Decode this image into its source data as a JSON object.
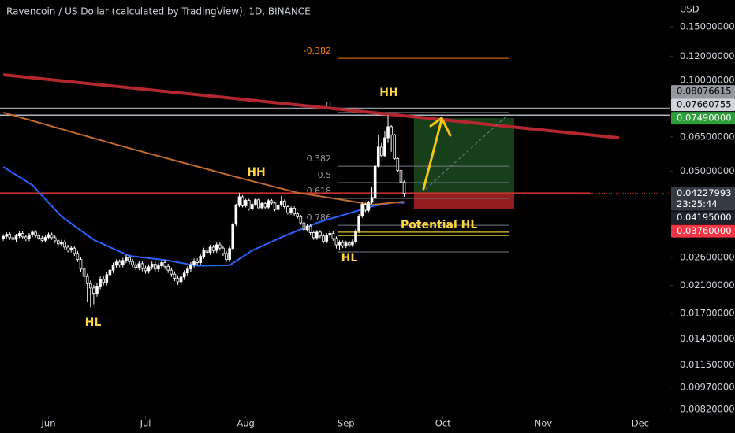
{
  "chart_data": {
    "type": "candlestick",
    "title": "Ravencoin / US Dollar (calculated by TradingView), 1D, BINANCE",
    "currency": "USD",
    "log_scale": true,
    "up_color": "#ffffff",
    "down_color": "#000000",
    "wick_color": "#ffffff",
    "xlim": [
      -1,
      206.3
    ],
    "xticks": [
      {
        "value": 14,
        "label": "Jun"
      },
      {
        "value": 44,
        "label": "Jul"
      },
      {
        "value": 75,
        "label": "Aug"
      },
      {
        "value": 106,
        "label": "Sep"
      },
      {
        "value": 136,
        "label": "Oct"
      },
      {
        "value": 167,
        "label": "Nov"
      },
      {
        "value": 197,
        "label": "Dec"
      }
    ],
    "ylim": [
      0.008,
      0.1838
    ],
    "yticks": [
      {
        "value": 0.15,
        "label": "0.15000000"
      },
      {
        "value": 0.12,
        "label": "0.12000000"
      },
      {
        "value": 0.1,
        "label": "0.10000000"
      },
      {
        "value": 0.065,
        "label": "0.06500000"
      },
      {
        "value": 0.05,
        "label": "0.05000000"
      },
      {
        "value": 0.026,
        "label": "0.02600000"
      },
      {
        "value": 0.021,
        "label": "0.02100000"
      },
      {
        "value": 0.017,
        "label": "0.01700000"
      },
      {
        "value": 0.014,
        "label": "0.01400000"
      },
      {
        "value": 0.0115,
        "label": "0.01150000"
      },
      {
        "value": 0.0097,
        "label": "0.00970000"
      },
      {
        "value": 0.0082,
        "label": "0.00820000"
      }
    ],
    "open": [
      0.03,
      0.0305,
      0.031,
      0.0302,
      0.0298,
      0.0306,
      0.0312,
      0.0304,
      0.0299,
      0.0308,
      0.0315,
      0.0307,
      0.0301,
      0.0296,
      0.0303,
      0.0309,
      0.0302,
      0.0295,
      0.0288,
      0.0292,
      0.0281,
      0.0275,
      0.0279,
      0.0268,
      0.0256,
      0.0238,
      0.0225,
      0.0213,
      0.0206,
      0.0198,
      0.0209,
      0.022,
      0.0215,
      0.0228,
      0.0236,
      0.0245,
      0.0251,
      0.0246,
      0.0254,
      0.026,
      0.0252,
      0.0246,
      0.0241,
      0.0248,
      0.0239,
      0.0235,
      0.0242,
      0.0247,
      0.0238,
      0.0244,
      0.025,
      0.0243,
      0.0236,
      0.0229,
      0.0222,
      0.0216,
      0.0224,
      0.0231,
      0.0238,
      0.0246,
      0.0253,
      0.025,
      0.0262,
      0.0275,
      0.027,
      0.0281,
      0.0274,
      0.0286,
      0.0279,
      0.0268,
      0.0256,
      0.0278,
      0.0335,
      0.0386,
      0.0412,
      0.0385,
      0.0401,
      0.0376,
      0.0389,
      0.0403,
      0.0379,
      0.0392,
      0.0381,
      0.04,
      0.0393,
      0.0374,
      0.0387,
      0.0399,
      0.0382,
      0.0365,
      0.0378,
      0.0362,
      0.0354,
      0.0338,
      0.0321,
      0.033,
      0.0314,
      0.0302,
      0.0315,
      0.0306,
      0.0294,
      0.0308,
      0.0312,
      0.03,
      0.0286,
      0.0291,
      0.0284,
      0.029,
      0.0286,
      0.0293,
      0.0318,
      0.0356,
      0.0389,
      0.0372,
      0.0395,
      0.041,
      0.052,
      0.0601,
      0.0563,
      0.0645,
      0.0702,
      0.066,
      0.0551,
      0.0503,
      0.0461
    ],
    "close": [
      0.0305,
      0.031,
      0.0302,
      0.0298,
      0.0306,
      0.0312,
      0.0304,
      0.0299,
      0.0308,
      0.0315,
      0.0307,
      0.0301,
      0.0296,
      0.0303,
      0.0309,
      0.0302,
      0.0295,
      0.0288,
      0.0292,
      0.0281,
      0.0275,
      0.0279,
      0.0268,
      0.0256,
      0.0238,
      0.0225,
      0.0213,
      0.0206,
      0.0198,
      0.0209,
      0.022,
      0.0215,
      0.0228,
      0.0236,
      0.0245,
      0.0251,
      0.0246,
      0.0254,
      0.026,
      0.0252,
      0.0246,
      0.0241,
      0.0248,
      0.0239,
      0.0235,
      0.0242,
      0.0247,
      0.0238,
      0.0244,
      0.025,
      0.0243,
      0.0236,
      0.0229,
      0.0222,
      0.0216,
      0.0224,
      0.0231,
      0.0238,
      0.0246,
      0.0253,
      0.025,
      0.0262,
      0.0275,
      0.027,
      0.0281,
      0.0274,
      0.0286,
      0.0279,
      0.0268,
      0.0256,
      0.0278,
      0.0335,
      0.0386,
      0.0412,
      0.0385,
      0.0401,
      0.0376,
      0.0389,
      0.0403,
      0.0379,
      0.0392,
      0.0381,
      0.04,
      0.0393,
      0.0374,
      0.0387,
      0.0399,
      0.0382,
      0.0365,
      0.0378,
      0.0362,
      0.0354,
      0.0338,
      0.0321,
      0.033,
      0.0314,
      0.0302,
      0.0315,
      0.0306,
      0.0294,
      0.0308,
      0.0312,
      0.03,
      0.0286,
      0.0291,
      0.0284,
      0.029,
      0.0286,
      0.0293,
      0.0318,
      0.0356,
      0.0389,
      0.0372,
      0.0395,
      0.041,
      0.052,
      0.0601,
      0.0563,
      0.0645,
      0.0702,
      0.066,
      0.0551,
      0.0503,
      0.0461,
      0.04228
    ],
    "high": [
      0.031,
      0.0315,
      0.0315,
      0.0307,
      0.0311,
      0.0317,
      0.0317,
      0.0309,
      0.0313,
      0.032,
      0.032,
      0.0312,
      0.0306,
      0.0308,
      0.0314,
      0.0314,
      0.0307,
      0.03,
      0.0297,
      0.0297,
      0.0286,
      0.0284,
      0.0284,
      0.0273,
      0.0261,
      0.0243,
      0.023,
      0.0218,
      0.0211,
      0.0214,
      0.0225,
      0.0225,
      0.0233,
      0.0241,
      0.025,
      0.0256,
      0.0256,
      0.0259,
      0.0265,
      0.0265,
      0.0257,
      0.0251,
      0.0253,
      0.0253,
      0.0244,
      0.0247,
      0.0252,
      0.0252,
      0.0249,
      0.0255,
      0.0255,
      0.0248,
      0.0241,
      0.0234,
      0.0227,
      0.0229,
      0.0236,
      0.0243,
      0.0251,
      0.0258,
      0.0258,
      0.0267,
      0.028,
      0.028,
      0.0286,
      0.0286,
      0.0291,
      0.0291,
      0.0284,
      0.0273,
      0.0283,
      0.034,
      0.0391,
      0.0425,
      0.0417,
      0.0406,
      0.0406,
      0.0394,
      0.0408,
      0.0408,
      0.0397,
      0.0397,
      0.0405,
      0.0405,
      0.0398,
      0.0392,
      0.0415,
      0.0404,
      0.0387,
      0.0383,
      0.0383,
      0.0367,
      0.0359,
      0.0343,
      0.0335,
      0.0335,
      0.0319,
      0.032,
      0.032,
      0.0311,
      0.0313,
      0.0317,
      0.0317,
      0.0305,
      0.0296,
      0.0296,
      0.0295,
      0.0295,
      0.0298,
      0.0323,
      0.0361,
      0.0394,
      0.0394,
      0.04,
      0.0445,
      0.053,
      0.066,
      0.062,
      0.068,
      0.0766,
      0.071,
      0.0665,
      0.0556,
      0.0508,
      0.0466
    ],
    "low": [
      0.0295,
      0.03,
      0.0297,
      0.0293,
      0.0293,
      0.0301,
      0.0299,
      0.0294,
      0.0294,
      0.0303,
      0.0302,
      0.0296,
      0.0291,
      0.0291,
      0.0298,
      0.0297,
      0.029,
      0.0283,
      0.0283,
      0.0276,
      0.027,
      0.027,
      0.0263,
      0.0251,
      0.0233,
      0.0215,
      0.0185,
      0.0178,
      0.0182,
      0.0193,
      0.0204,
      0.021,
      0.021,
      0.0223,
      0.0231,
      0.024,
      0.0241,
      0.0241,
      0.0249,
      0.0247,
      0.0241,
      0.0236,
      0.0236,
      0.0234,
      0.023,
      0.023,
      0.0237,
      0.0233,
      0.0233,
      0.0239,
      0.0238,
      0.0231,
      0.0224,
      0.0217,
      0.0211,
      0.0211,
      0.0219,
      0.0226,
      0.0233,
      0.0241,
      0.0245,
      0.0245,
      0.0257,
      0.0265,
      0.0265,
      0.0269,
      0.0269,
      0.0274,
      0.0263,
      0.0251,
      0.0251,
      0.0273,
      0.033,
      0.0381,
      0.038,
      0.038,
      0.0371,
      0.0371,
      0.0384,
      0.0374,
      0.0374,
      0.0376,
      0.0376,
      0.0388,
      0.0369,
      0.0369,
      0.0382,
      0.0377,
      0.036,
      0.036,
      0.0357,
      0.0349,
      0.0333,
      0.0316,
      0.0316,
      0.0309,
      0.0297,
      0.0297,
      0.0301,
      0.0289,
      0.0289,
      0.0303,
      0.0295,
      0.0278,
      0.0276,
      0.0279,
      0.0279,
      0.0281,
      0.0281,
      0.0288,
      0.0313,
      0.0351,
      0.0367,
      0.0367,
      0.039,
      0.0405,
      0.0515,
      0.0558,
      0.0558,
      0.062,
      0.058,
      0.0546,
      0.0498,
      0.0456,
      0.0412
    ],
    "moving_averages": [
      {
        "color": "#2962ff",
        "x": [
          0,
          9,
          18,
          28,
          39,
          50,
          60,
          70,
          77,
          87,
          97,
          106,
          114,
          121,
          124
        ],
        "values": [
          0.0517,
          0.045,
          0.0355,
          0.0297,
          0.0263,
          0.0255,
          0.0244,
          0.0245,
          0.0274,
          0.0306,
          0.0338,
          0.0361,
          0.0383,
          0.0395,
          0.0393
        ]
      },
      {
        "color": "#c26a2a",
        "x": [
          0,
          36,
          72,
          91,
          106,
          114,
          124
        ],
        "values": [
          0.0782,
          0.0608,
          0.0479,
          0.0425,
          0.0401,
          0.0388,
          0.0397
        ]
      }
    ],
    "trend_line": {
      "color": "#b2282e",
      "x": [
        0,
        190.5
      ],
      "values": [
        0.1041,
        0.0645
      ]
    },
    "horizontal_lines": [
      {
        "value": 0.08076615,
        "label": "0.08076615",
        "color": "#9598a1"
      },
      {
        "value": 0.07660755,
        "label": "0.07660755",
        "color": "#b2b5be"
      }
    ],
    "price_line": {
      "value": 0.04227993,
      "label": "0.04227993",
      "countdown": "23:25:44",
      "color": "#e53935"
    },
    "position": {
      "x": [
        127,
        158
      ],
      "target": {
        "value": 0.0749,
        "label": "0.07490000"
      },
      "entry": {
        "value": 0.04195,
        "label": "0.04195000"
      },
      "stop": {
        "value": 0.0376,
        "label": "0.03760000"
      }
    },
    "fib": {
      "x": [
        103.4,
        156.3
      ],
      "levels": [
        {
          "label": "-0.382",
          "value": 0.118,
          "color": "#f57c00"
        },
        {
          "label": "0",
          "value": 0.0782,
          "color": "#787b86"
        },
        {
          "label": "0.382",
          "value": 0.052,
          "color": "#787b86"
        },
        {
          "label": "0.5",
          "value": 0.0459,
          "color": "#787b86"
        },
        {
          "label": "0.618",
          "value": 0.0407,
          "color": "#787b86"
        },
        {
          "label": "0.786",
          "value": 0.0332,
          "color": "#787b86"
        },
        {
          "label": null,
          "value": 0.0271,
          "color": "#787b86"
        }
      ]
    },
    "support_lines": {
      "color": "#e6c229",
      "x": [
        103.4,
        156.3
      ],
      "values": [
        0.0315,
        0.0307
      ]
    },
    "annotations": [
      "HH",
      "HH",
      "HL",
      "HL",
      "Potential HL"
    ]
  }
}
